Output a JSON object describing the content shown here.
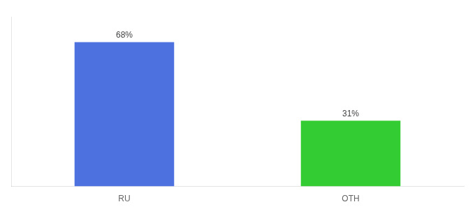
{
  "chart_data": {
    "type": "bar",
    "categories": [
      "RU",
      "OTH"
    ],
    "values": [
      68,
      31
    ],
    "value_labels": [
      "68%",
      "31%"
    ],
    "colors": [
      "#4d72e0",
      "#33cc33"
    ],
    "data_labels": true,
    "ylim": [
      0,
      80
    ],
    "tick_labels": "x",
    "grid": false
  }
}
